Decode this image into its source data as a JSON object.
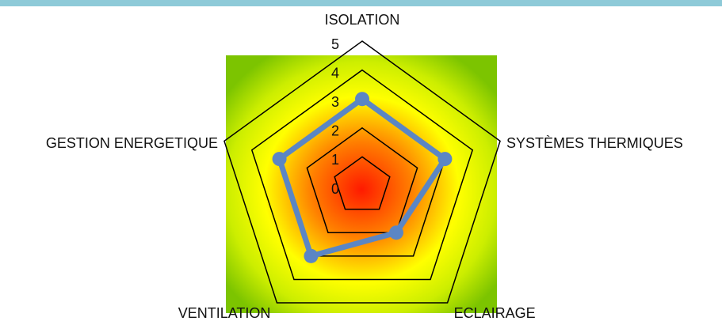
{
  "chart_data": {
    "type": "radar",
    "categories": [
      "ISOLATION",
      "SYSTÈMES THERMIQUES",
      "ECLAIRAGE",
      "VENTILATION",
      "GESTION ENERGETIQUE"
    ],
    "values": [
      3,
      3,
      2,
      3,
      3
    ],
    "color": "#5b86c4",
    "rlim": [
      0,
      5
    ],
    "rticks": [
      0,
      1,
      2,
      3,
      4,
      5
    ],
    "grid": true
  }
}
